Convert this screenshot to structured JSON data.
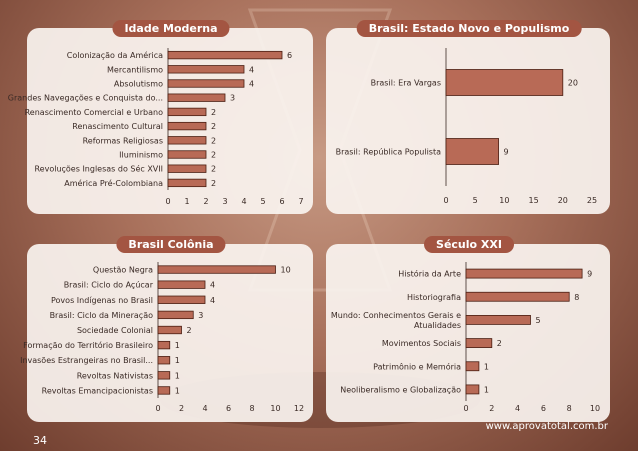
{
  "page": {
    "number": "34",
    "site": "www.aprovatotal.com.br"
  },
  "colors": {
    "bar_fill": "#b86a56",
    "bar_stroke": "#4a1e12",
    "title_bg": "#a35542",
    "axis": "#3a2a25"
  },
  "chart_data": [
    {
      "type": "bar",
      "orientation": "horizontal",
      "title": "Idade Moderna",
      "categories": [
        "Colonização da América",
        "Mercantilismo",
        "Absolutismo",
        "Grandes Navegações e Conquista do...",
        "Renascimento Comercial e Urbano",
        "Renascimento Cultural",
        "Reformas Religiosas",
        "Iluminismo",
        "Revoluções Inglesas do Séc XVII",
        "América Pré-Colombiana"
      ],
      "values": [
        6,
        4,
        4,
        3,
        2,
        2,
        2,
        2,
        2,
        2
      ],
      "xlim": [
        0,
        7
      ],
      "xticks": [
        "0",
        "1",
        "2",
        "3",
        "4",
        "5",
        "6",
        "7"
      ],
      "xlabel": "",
      "ylabel": ""
    },
    {
      "type": "bar",
      "orientation": "horizontal",
      "title": "Brasil: Estado Novo e Populismo",
      "categories": [
        "Brasil: Era Vargas",
        "Brasil: República Populista"
      ],
      "values": [
        20,
        9
      ],
      "xlim": [
        0,
        25
      ],
      "xticks": [
        "0",
        "5",
        "10",
        "15",
        "20",
        "25"
      ],
      "xlabel": "",
      "ylabel": ""
    },
    {
      "type": "bar",
      "orientation": "horizontal",
      "title": "Brasil Colônia",
      "categories": [
        "Questão Negra",
        "Brasil: Ciclo do Açúcar",
        "Povos Indígenas no Brasil",
        "Brasil: Ciclo da Mineração",
        "Sociedade Colonial",
        "Formação do Território Brasileiro",
        "Invasões Estrangeiras no Brasil...",
        "Revoltas Nativistas",
        "Revoltas Emancipacionistas"
      ],
      "values": [
        10,
        4,
        4,
        3,
        2,
        1,
        1,
        1,
        1
      ],
      "xlim": [
        0,
        12
      ],
      "xticks": [
        "0",
        "2",
        "4",
        "6",
        "8",
        "10",
        "12"
      ],
      "xlabel": "",
      "ylabel": ""
    },
    {
      "type": "bar",
      "orientation": "horizontal",
      "title": "Século XXI",
      "categories": [
        "História da Arte",
        "Historiografia",
        "Mundo: Conhecimentos Gerais e Atualidades",
        "Movimentos Sociais",
        "Patrimônio e Memória",
        "Neoliberalismo e Globalização"
      ],
      "values": [
        9,
        8,
        5,
        2,
        1,
        1
      ],
      "xlim": [
        0,
        10
      ],
      "xticks": [
        "0",
        "2",
        "4",
        "6",
        "8",
        "10"
      ],
      "xlabel": "",
      "ylabel": ""
    }
  ]
}
